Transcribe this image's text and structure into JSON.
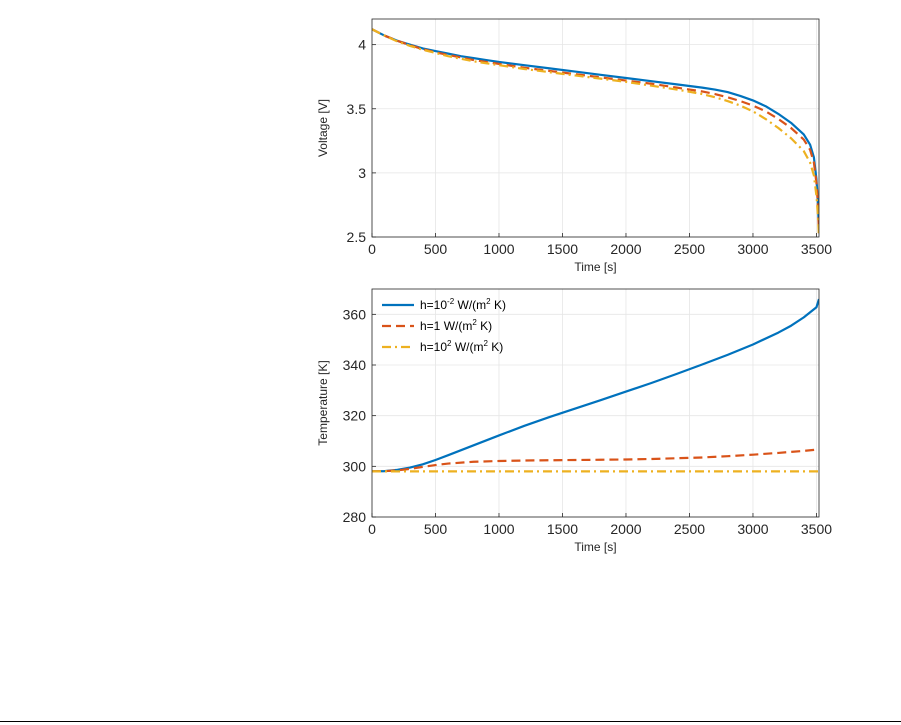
{
  "chart_data": [
    {
      "type": "line",
      "xlabel": "Time [s]",
      "ylabel": "Voltage [V]",
      "xlim": [
        0,
        3520
      ],
      "ylim": [
        2.5,
        4.2
      ],
      "grid": true,
      "xticks": [
        0,
        500,
        1000,
        1500,
        2000,
        2500,
        3000,
        3500
      ],
      "yticks": [
        2.5,
        3,
        3.5,
        4
      ],
      "ytick_labels": [
        "2.5",
        "3",
        "3.5",
        "4"
      ],
      "series": [
        {
          "name": "h=10^-2 W/(m^2 K)",
          "color": "#0072BD",
          "style": "solid",
          "x": [
            0,
            100,
            200,
            300,
            400,
            500,
            600,
            700,
            800,
            900,
            1000,
            1200,
            1400,
            1600,
            1800,
            2000,
            2200,
            2400,
            2600,
            2700,
            2800,
            2900,
            3000,
            3100,
            3200,
            3300,
            3400,
            3450,
            3480,
            3500,
            3510,
            3520
          ],
          "y": [
            4.12,
            4.07,
            4.03,
            4.0,
            3.97,
            3.95,
            3.93,
            3.91,
            3.895,
            3.88,
            3.865,
            3.84,
            3.815,
            3.79,
            3.765,
            3.74,
            3.715,
            3.69,
            3.665,
            3.65,
            3.63,
            3.6,
            3.565,
            3.52,
            3.46,
            3.39,
            3.3,
            3.22,
            3.12,
            2.95,
            2.8,
            2.55
          ]
        },
        {
          "name": "h=1 W/(m^2 K)",
          "color": "#D95319",
          "style": "dashed",
          "x": [
            0,
            100,
            200,
            300,
            400,
            500,
            600,
            700,
            800,
            900,
            1000,
            1200,
            1400,
            1600,
            1800,
            2000,
            2200,
            2400,
            2600,
            2700,
            2800,
            2900,
            3000,
            3100,
            3200,
            3300,
            3400,
            3450,
            3480,
            3500,
            3510,
            3520
          ],
          "y": [
            4.12,
            4.07,
            4.03,
            3.995,
            3.965,
            3.94,
            3.92,
            3.9,
            3.88,
            3.865,
            3.85,
            3.82,
            3.795,
            3.77,
            3.745,
            3.72,
            3.695,
            3.665,
            3.635,
            3.615,
            3.59,
            3.56,
            3.525,
            3.48,
            3.42,
            3.35,
            3.26,
            3.18,
            3.08,
            2.92,
            2.78,
            2.53
          ]
        },
        {
          "name": "h=10^2 W/(m^2 K)",
          "color": "#EDB120",
          "style": "dashdot",
          "x": [
            0,
            100,
            200,
            300,
            400,
            500,
            600,
            700,
            800,
            900,
            1000,
            1200,
            1400,
            1600,
            1800,
            2000,
            2200,
            2400,
            2600,
            2700,
            2800,
            2900,
            3000,
            3100,
            3200,
            3300,
            3400,
            3450,
            3480,
            3500,
            3510,
            3520
          ],
          "y": [
            4.12,
            4.07,
            4.025,
            3.99,
            3.96,
            3.935,
            3.91,
            3.89,
            3.87,
            3.855,
            3.84,
            3.81,
            3.785,
            3.76,
            3.735,
            3.71,
            3.68,
            3.65,
            3.615,
            3.59,
            3.56,
            3.525,
            3.48,
            3.42,
            3.35,
            3.27,
            3.17,
            3.08,
            2.98,
            2.82,
            2.7,
            2.5
          ]
        }
      ]
    },
    {
      "type": "line",
      "xlabel": "Time [s]",
      "ylabel": "Temperature [K]",
      "xlim": [
        0,
        3520
      ],
      "ylim": [
        280,
        370
      ],
      "grid": true,
      "xticks": [
        0,
        500,
        1000,
        1500,
        2000,
        2500,
        3000,
        3500
      ],
      "yticks": [
        280,
        300,
        320,
        340,
        360
      ],
      "ytick_labels": [
        "280",
        "300",
        "320",
        "340",
        "360"
      ],
      "legend": {
        "position": "top-left",
        "entries": [
          {
            "prefix": "h=10",
            "sup": "-2",
            "mid": " W/(m",
            "sup2": "2",
            "suffix": " K)"
          },
          {
            "prefix": "h=1 W/(m",
            "sup": "2",
            "mid": " K)",
            "sup2": "",
            "suffix": ""
          },
          {
            "prefix": "h=10",
            "sup": "2",
            "mid": " W/(m",
            "sup2": "2",
            "suffix": " K)"
          }
        ]
      },
      "series": [
        {
          "name": "h=10^-2 W/(m^2 K)",
          "color": "#0072BD",
          "style": "solid",
          "x": [
            0,
            100,
            200,
            300,
            400,
            500,
            600,
            800,
            1000,
            1200,
            1400,
            1600,
            1800,
            2000,
            2200,
            2400,
            2600,
            2800,
            3000,
            3200,
            3300,
            3400,
            3500,
            3520
          ],
          "y": [
            298,
            298.1,
            298.6,
            299.5,
            300.8,
            302.5,
            304.4,
            308.3,
            312.2,
            316.0,
            319.5,
            322.8,
            326.1,
            329.5,
            332.9,
            336.5,
            340.2,
            344.0,
            348.1,
            352.8,
            355.5,
            358.8,
            362.8,
            366
          ]
        },
        {
          "name": "h=1 W/(m^2 K)",
          "color": "#D95319",
          "style": "dashed",
          "x": [
            0,
            100,
            200,
            300,
            400,
            500,
            600,
            800,
            1000,
            1200,
            1400,
            1600,
            1800,
            2000,
            2200,
            2400,
            2600,
            2800,
            3000,
            3200,
            3400,
            3520
          ],
          "y": [
            298,
            298.1,
            298.4,
            299.0,
            299.8,
            300.5,
            301.1,
            301.8,
            302.1,
            302.3,
            302.4,
            302.5,
            302.6,
            302.7,
            302.9,
            303.2,
            303.5,
            304.0,
            304.6,
            305.3,
            306.1,
            306.7
          ]
        },
        {
          "name": "h=10^2 W/(m^2 K)",
          "color": "#EDB120",
          "style": "dashdot",
          "x": [
            0,
            500,
            1000,
            1500,
            2000,
            2500,
            3000,
            3520
          ],
          "y": [
            298,
            298,
            298,
            298,
            298,
            298,
            298,
            298
          ]
        }
      ]
    }
  ]
}
